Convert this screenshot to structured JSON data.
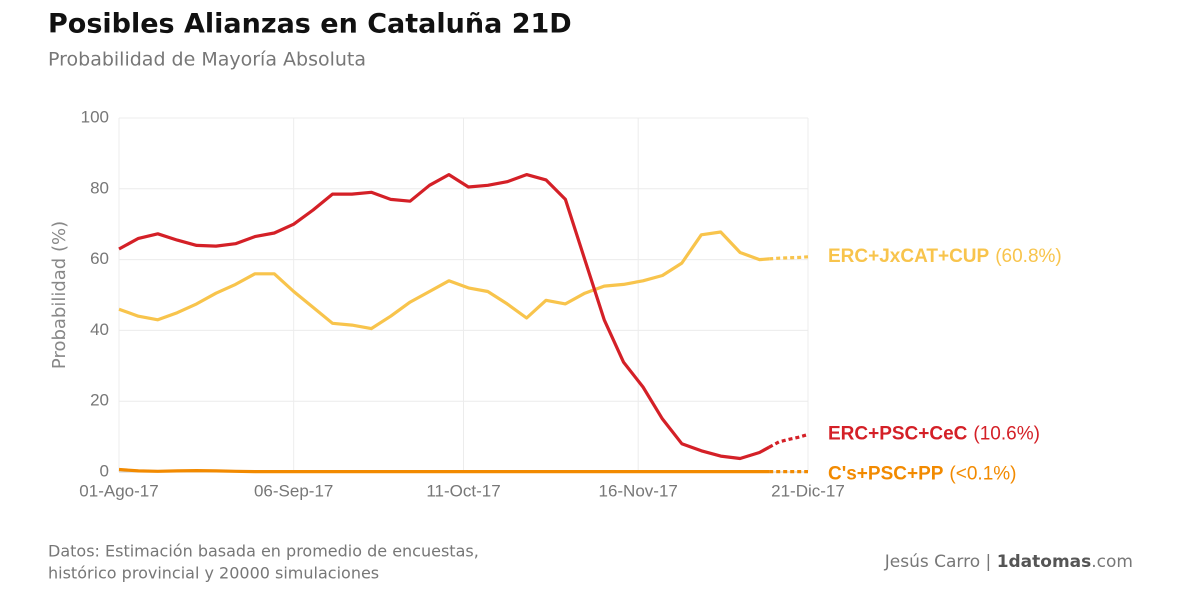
{
  "chart_data": {
    "type": "line",
    "title": "Posibles Alianzas en Cataluña 21D",
    "subtitle": "Probabilidad de Mayoría Absoluta",
    "y_label": "Probabilidad (%)",
    "source": [
      "Datos: Estimación basada en promedio de encuestas,",
      "histórico provincial y 20000 simulaciones"
    ],
    "credit": [
      "Jesús Carro | ",
      "1datomas",
      ".com"
    ],
    "x": [
      "2017-08-01",
      "2017-08-05",
      "2017-08-09",
      "2017-08-13",
      "2017-08-17",
      "2017-08-21",
      "2017-08-25",
      "2017-08-29",
      "2017-09-02",
      "2017-09-06",
      "2017-09-10",
      "2017-09-14",
      "2017-09-18",
      "2017-09-22",
      "2017-09-26",
      "2017-09-30",
      "2017-10-04",
      "2017-10-08",
      "2017-10-12",
      "2017-10-16",
      "2017-10-20",
      "2017-10-24",
      "2017-10-28",
      "2017-11-01",
      "2017-11-05",
      "2017-11-09",
      "2017-11-13",
      "2017-11-17",
      "2017-11-21",
      "2017-11-25",
      "2017-11-29",
      "2017-12-03",
      "2017-12-07",
      "2017-12-11",
      "2017-12-13",
      "2017-12-15",
      "2017-12-17",
      "2017-12-19",
      "2017-12-21"
    ],
    "dashed_from": "2017-12-13",
    "xlim": [
      "2017-08-01",
      "2017-12-21"
    ],
    "xticks": [
      {
        "value": "2017-08-01",
        "label": "01-Ago-17"
      },
      {
        "value": "2017-09-06",
        "label": "06-Sep-17"
      },
      {
        "value": "2017-10-11",
        "label": "11-Oct-17"
      },
      {
        "value": "2017-11-16",
        "label": "16-Nov-17"
      },
      {
        "value": "2017-12-21",
        "label": "21-Dic-17"
      }
    ],
    "ylim": [
      0,
      100
    ],
    "yticks": [
      0,
      20,
      40,
      60,
      80,
      100
    ],
    "grid": true,
    "series": [
      {
        "name": "ERC+JxCAT+CUP",
        "end_label": "(60.8%)",
        "color": "#f8c44c",
        "values": [
          46,
          44,
          43,
          45,
          47.5,
          50.5,
          53,
          56,
          56,
          51,
          46.5,
          42,
          41.5,
          40.5,
          44,
          48,
          51,
          54,
          52,
          51,
          47.5,
          43.5,
          48.5,
          47.5,
          50.5,
          52.5,
          53,
          54,
          55.5,
          59,
          67,
          67.8,
          62,
          60,
          60.2,
          60.4,
          60.5,
          60.6,
          60.8
        ]
      },
      {
        "name": "ERC+PSC+CeC",
        "end_label": "(10.6%)",
        "color": "#d42027",
        "values": [
          63,
          66,
          67.3,
          65.5,
          64,
          63.8,
          64.5,
          66.5,
          67.5,
          70,
          74,
          78.5,
          78.5,
          79,
          77,
          76.5,
          81,
          84,
          80.5,
          81,
          82,
          84,
          82.5,
          77,
          60,
          43,
          31,
          24,
          15,
          8,
          6,
          4.5,
          3.8,
          5.5,
          7,
          8.5,
          9.2,
          9.8,
          10.6
        ]
      },
      {
        "name": "C's+PSC+PP",
        "end_label": "(<0.1%)",
        "color": "#f28a00",
        "values": [
          0.7,
          0.3,
          0.2,
          0.3,
          0.4,
          0.3,
          0.2,
          0.1,
          0.1,
          0.1,
          0.1,
          0.1,
          0.1,
          0.1,
          0.1,
          0.1,
          0.1,
          0.1,
          0.1,
          0.1,
          0.1,
          0.1,
          0.1,
          0.1,
          0.1,
          0.1,
          0.1,
          0.1,
          0.1,
          0.1,
          0.1,
          0.1,
          0.1,
          0.1,
          0.1,
          0.1,
          0.1,
          0.1,
          0.1
        ]
      }
    ]
  }
}
